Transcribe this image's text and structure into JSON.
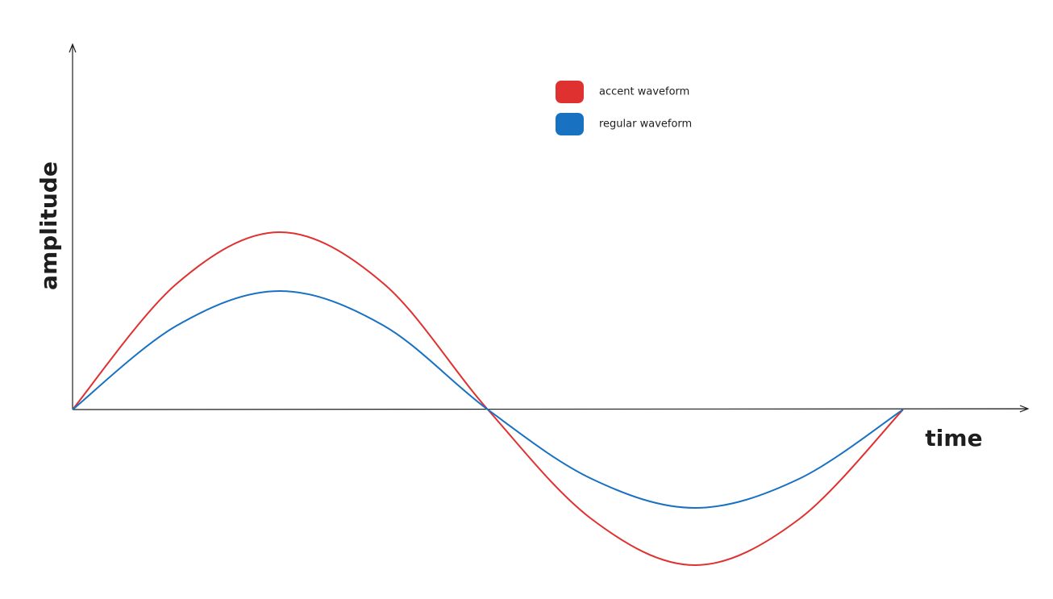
{
  "chart_data": {
    "type": "line",
    "x_label": "time",
    "y_label": "amplitude",
    "x": [
      0,
      1.29,
      2.57,
      3.86,
      5.15,
      6.44,
      7.72,
      9.01,
      10.3
    ],
    "series": [
      {
        "name": "accent waveform",
        "color": "#e03131",
        "values": [
          0,
          1.56,
          2.2,
          1.56,
          0,
          -1.36,
          -1.93,
          -1.36,
          0
        ]
      },
      {
        "name": "regular waveform",
        "color": "#1971c2",
        "values": [
          0,
          1.04,
          1.47,
          1.04,
          0,
          -0.86,
          -1.22,
          -0.86,
          0
        ]
      }
    ],
    "xlim": [
      0,
      11.85
    ],
    "ylim": [
      -2.35,
      4.53
    ]
  }
}
